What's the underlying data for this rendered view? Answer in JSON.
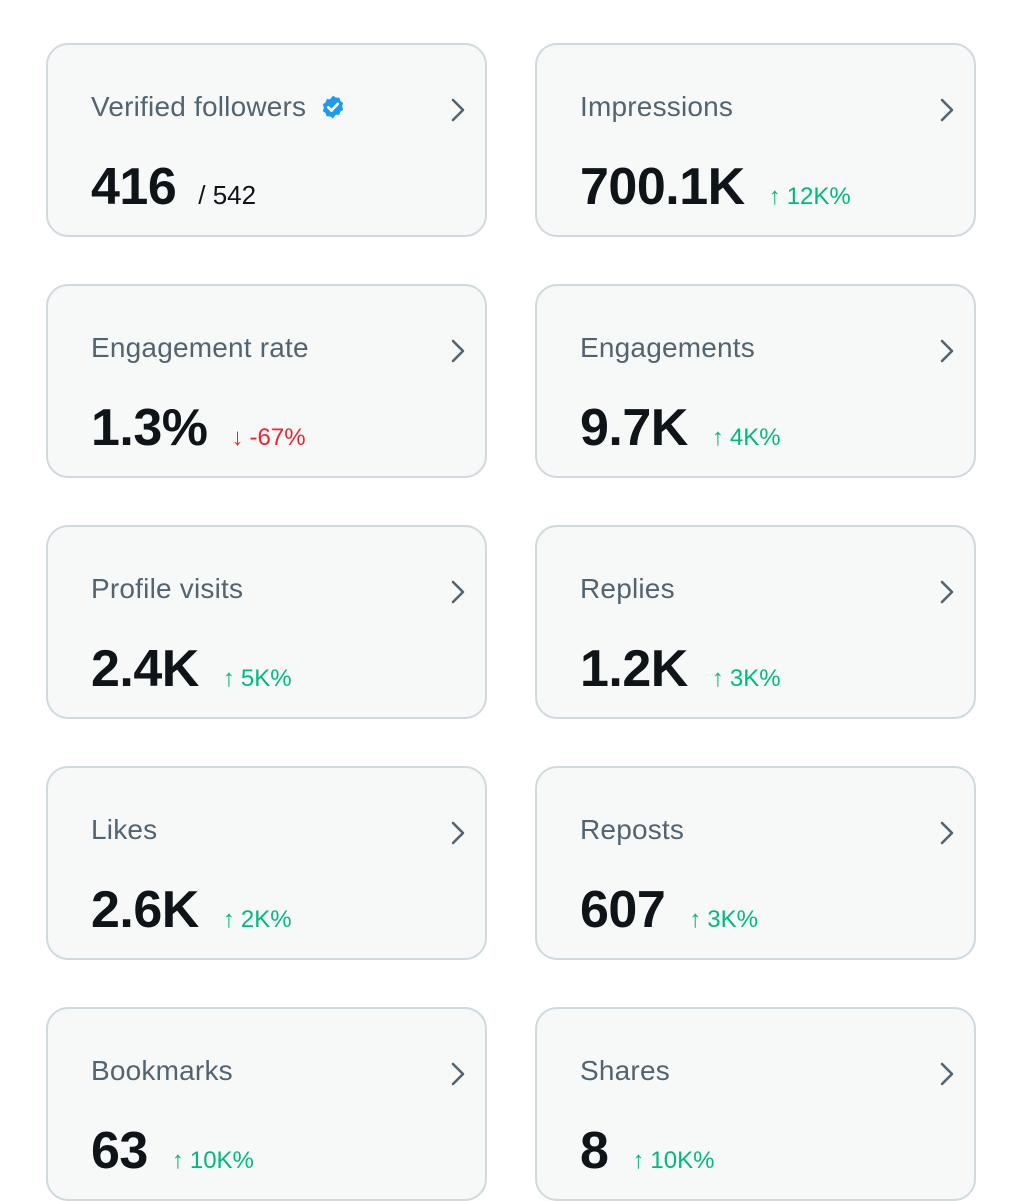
{
  "colors": {
    "card_bg": "#f7f9f9",
    "card_border": "#cfd9de",
    "title": "#536471",
    "value": "#0f1419",
    "positive": "#00ba7c",
    "negative": "#f4212e",
    "verified_badge": "#1d9bf0"
  },
  "cards": [
    {
      "title": "Verified followers",
      "value": "416",
      "denominator": "/ 542",
      "verified_badge": "verified-badge-icon"
    },
    {
      "title": "Impressions",
      "value": "700.1K",
      "change_arrow": "↑",
      "change": "12K%",
      "direction": "up"
    },
    {
      "title": "Engagement rate",
      "value": "1.3%",
      "change_arrow": "↓",
      "change": "-67%",
      "direction": "down"
    },
    {
      "title": "Engagements",
      "value": "9.7K",
      "change_arrow": "↑",
      "change": "4K%",
      "direction": "up"
    },
    {
      "title": "Profile visits",
      "value": "2.4K",
      "change_arrow": "↑",
      "change": "5K%",
      "direction": "up"
    },
    {
      "title": "Replies",
      "value": "1.2K",
      "change_arrow": "↑",
      "change": "3K%",
      "direction": "up"
    },
    {
      "title": "Likes",
      "value": "2.6K",
      "change_arrow": "↑",
      "change": "2K%",
      "direction": "up"
    },
    {
      "title": "Reposts",
      "value": "607",
      "change_arrow": "↑",
      "change": "3K%",
      "direction": "up"
    },
    {
      "title": "Bookmarks",
      "value": "63",
      "change_arrow": "↑",
      "change": "10K%",
      "direction": "up"
    },
    {
      "title": "Shares",
      "value": "8",
      "change_arrow": "↑",
      "change": "10K%",
      "direction": "up"
    }
  ]
}
